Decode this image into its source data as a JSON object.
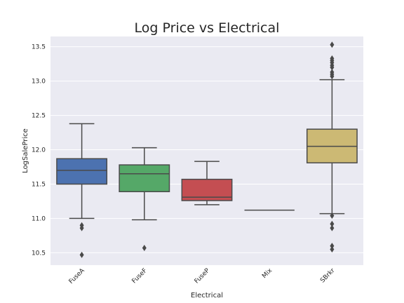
{
  "chart_data": {
    "type": "box",
    "title": "Log Price vs Electrical",
    "xlabel": "Electrical",
    "ylabel": "LogSalePrice",
    "ylim": [
      10.32,
      13.65
    ],
    "yticks": [
      "10.5",
      "11.0",
      "11.5",
      "12.0",
      "12.5",
      "13.0",
      "13.5"
    ],
    "grid": true,
    "categories": [
      "FuseA",
      "FuseF",
      "FuseP",
      "Mix",
      "SBrkr"
    ],
    "boxes": [
      {
        "category": "FuseA",
        "color": "#4c72b0",
        "whisker_low": 11.0,
        "q1": 11.5,
        "median": 11.7,
        "q3": 11.87,
        "whisker_high": 12.38,
        "outliers": [
          10.9,
          10.86,
          10.47
        ]
      },
      {
        "category": "FuseF",
        "color": "#55a868",
        "whisker_low": 10.98,
        "q1": 11.39,
        "median": 11.65,
        "q3": 11.78,
        "whisker_high": 12.03,
        "outliers": [
          10.57
        ]
      },
      {
        "category": "FuseP",
        "color": "#c44e52",
        "whisker_low": 11.2,
        "q1": 11.26,
        "median": 11.31,
        "q3": 11.57,
        "whisker_high": 11.83,
        "outliers": []
      },
      {
        "category": "Mix",
        "color": "#8172b2",
        "whisker_low": 11.12,
        "q1": 11.12,
        "median": 11.12,
        "q3": 11.12,
        "whisker_high": 11.12,
        "outliers": []
      },
      {
        "category": "SBrkr",
        "color": "#ccb974",
        "whisker_low": 11.07,
        "q1": 11.81,
        "median": 12.05,
        "q3": 12.3,
        "whisker_high": 13.02,
        "outliers": [
          13.53,
          13.33,
          13.3,
          13.27,
          13.23,
          13.2,
          13.13,
          13.1,
          13.07,
          11.04,
          10.92,
          10.86,
          10.6,
          10.55
        ]
      }
    ]
  }
}
